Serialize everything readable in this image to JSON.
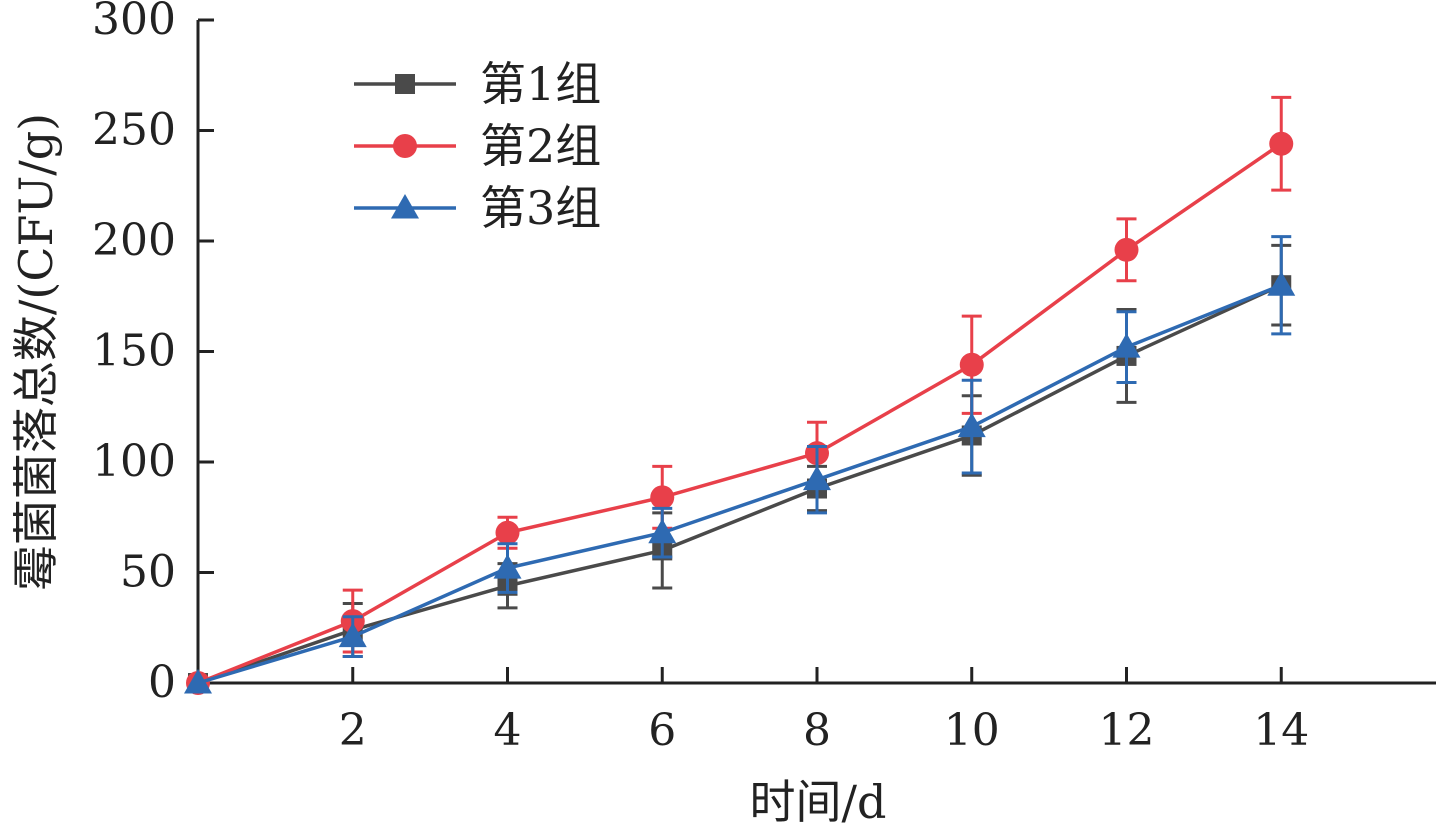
{
  "chart_data": {
    "type": "line",
    "xlabel": "时间/d",
    "ylabel": "霉菌菌落总数/(CFU/g)",
    "xlim": [
      0,
      16
    ],
    "ylim": [
      0,
      300
    ],
    "x_ticks": [
      2,
      4,
      6,
      8,
      10,
      12,
      14
    ],
    "y_ticks": [
      0,
      50,
      100,
      150,
      200,
      250,
      300
    ],
    "legend_position": "top-left",
    "grid": false,
    "series": [
      {
        "name": "第1组",
        "color": "#4a4a4a",
        "marker": "square",
        "x": [
          0,
          2,
          4,
          6,
          8,
          10,
          12,
          14
        ],
        "y": [
          0,
          24,
          44,
          60,
          88,
          112,
          148,
          180
        ],
        "error": [
          0,
          12,
          10,
          17,
          10,
          18,
          21,
          18
        ]
      },
      {
        "name": "第2组",
        "color": "#e8404a",
        "marker": "circle",
        "x": [
          0,
          2,
          4,
          6,
          8,
          10,
          12,
          14
        ],
        "y": [
          0,
          28,
          68,
          84,
          104,
          144,
          196,
          244
        ],
        "error": [
          0,
          14,
          7,
          14,
          14,
          22,
          14,
          21
        ]
      },
      {
        "name": "第3组",
        "color": "#2e6ab2",
        "marker": "triangle",
        "x": [
          0,
          2,
          4,
          6,
          8,
          10,
          12,
          14
        ],
        "y": [
          0,
          21,
          52,
          68,
          92,
          116,
          152,
          180
        ],
        "error": [
          0,
          9,
          11,
          11,
          15,
          21,
          16,
          22
        ]
      }
    ]
  }
}
